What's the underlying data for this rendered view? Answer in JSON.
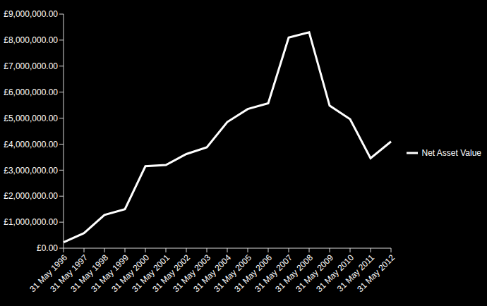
{
  "chart_data": {
    "type": "line",
    "categories": [
      "31 May 1996",
      "31 May 1997",
      "31 May 1998",
      "31 May 1999",
      "31 May 2000",
      "31 May 2001",
      "31 May 2002",
      "31 May 2003",
      "31 May 2004",
      "31 May 2005",
      "31 May 2006",
      "31 May 2007",
      "31 May 2008",
      "31 May 2009",
      "31 May 2010",
      "31 May 2011",
      "31 May 2012"
    ],
    "series": [
      {
        "name": "Net Asset Value",
        "color": "#ffffff",
        "values": [
          230000,
          580000,
          1280000,
          1500000,
          3150000,
          3200000,
          3620000,
          3880000,
          4850000,
          5350000,
          5570000,
          8100000,
          8300000,
          5480000,
          4960000,
          3460000,
          4100000
        ]
      }
    ],
    "ylim": [
      0,
      9000000
    ],
    "yticks": [
      {
        "value": 0,
        "label": "£0.00"
      },
      {
        "value": 1000000,
        "label": "£1,000,000.00"
      },
      {
        "value": 2000000,
        "label": "£2,000,000.00"
      },
      {
        "value": 3000000,
        "label": "£3,000,000.00"
      },
      {
        "value": 4000000,
        "label": "£4,000,000.00"
      },
      {
        "value": 5000000,
        "label": "£5,000,000.00"
      },
      {
        "value": 6000000,
        "label": "£6,000,000.00"
      },
      {
        "value": 7000000,
        "label": "£7,000,000.00"
      },
      {
        "value": 8000000,
        "label": "£8,000,000.00"
      },
      {
        "value": 9000000,
        "label": "£9,000,000.00"
      }
    ],
    "grid": false,
    "legend": "right"
  }
}
